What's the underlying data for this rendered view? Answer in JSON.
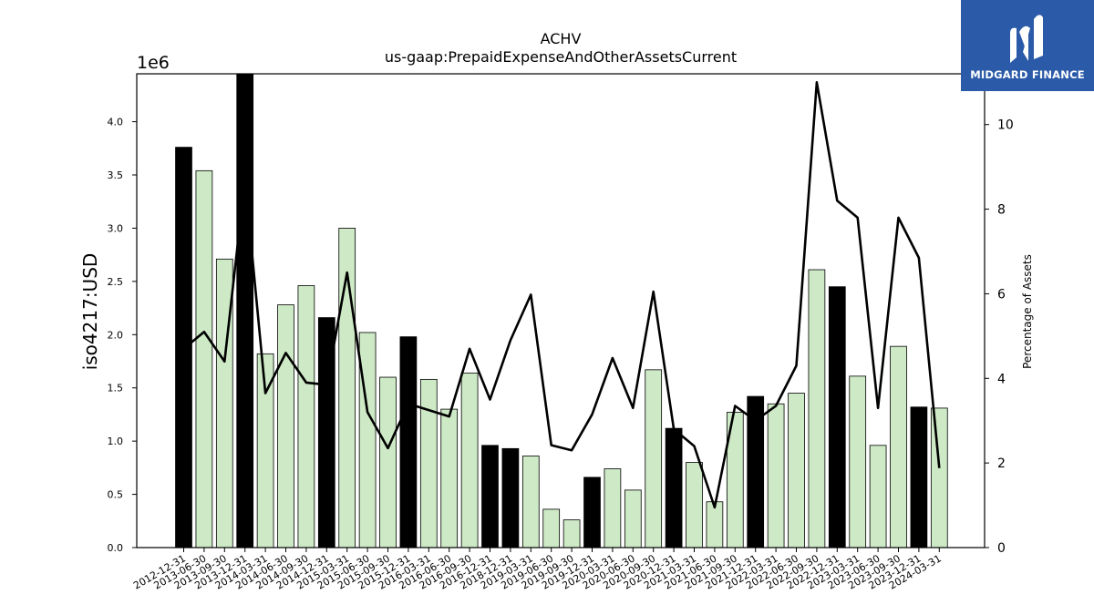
{
  "brand": {
    "name": "MIDGARD FINANCE",
    "logo_icon": "midgard-m-logo-icon",
    "logo_color": "#2a5aa8"
  },
  "chart_data": {
    "type": "bar",
    "title": "ACHV",
    "subtitle": "us-gaap:PrepaidExpenseAndOtherAssetsCurrent",
    "ylabel": "iso4217:USD",
    "ylabel_right": "Percentage of Assets",
    "y_offset_label": "1e6",
    "ylim": [
      0,
      4450000
    ],
    "ylim_right": [
      0,
      11.2
    ],
    "yticks": [
      "0.0",
      "0.5",
      "1.0",
      "1.5",
      "2.0",
      "2.5",
      "3.0",
      "3.5",
      "4.0"
    ],
    "yticks_right": [
      "0",
      "2",
      "4",
      "6",
      "8",
      "10"
    ],
    "colors": {
      "annual_bar": "#000000",
      "quarter_bar": "#cde9c5",
      "line": "#000000"
    },
    "categories": [
      "2012-12-31",
      "2013-06-30",
      "2013-09-30",
      "2013-12-31",
      "2014-03-31",
      "2014-06-30",
      "2014-09-30",
      "2014-12-31",
      "2015-03-31",
      "2015-06-30",
      "2015-09-30",
      "2015-12-31",
      "2016-03-31",
      "2016-06-30",
      "2016-09-30",
      "2016-12-31",
      "2018-12-31",
      "2019-03-31",
      "2019-06-30",
      "2019-09-30",
      "2019-12-31",
      "2020-03-31",
      "2020-06-30",
      "2020-09-30",
      "2020-12-31",
      "2021-03-31",
      "2021-06-30",
      "2021-09-30",
      "2021-12-31",
      "2022-03-31",
      "2022-06-30",
      "2022-09-30",
      "2022-12-31",
      "2023-03-31",
      "2023-06-30",
      "2023-09-30",
      "2023-12-31",
      "2024-03-31"
    ],
    "series": [
      {
        "type": "bar",
        "values": [
          3760000,
          3540000,
          2710000,
          4450000,
          1820000,
          2280000,
          2460000,
          2160000,
          3000000,
          2020000,
          1600000,
          1980000,
          1580000,
          1300000,
          1640000,
          960000,
          930000,
          860000,
          360000,
          260000,
          660000,
          740000,
          540000,
          1670000,
          1120000,
          800000,
          430000,
          1270000,
          1420000,
          1350000,
          1450000,
          2610000,
          2450000,
          1610000,
          960000,
          1890000,
          1320000,
          1310000
        ],
        "annual": [
          true,
          false,
          false,
          true,
          false,
          false,
          false,
          true,
          false,
          false,
          false,
          true,
          false,
          false,
          false,
          true,
          true,
          false,
          false,
          false,
          true,
          false,
          false,
          false,
          true,
          false,
          false,
          false,
          true,
          false,
          false,
          false,
          true,
          false,
          false,
          false,
          true,
          false
        ]
      },
      {
        "type": "line",
        "axis": "right",
        "values": [
          4.7,
          5.1,
          4.4,
          8.7,
          3.65,
          4.6,
          3.9,
          3.85,
          6.5,
          3.2,
          2.35,
          3.4,
          3.25,
          3.1,
          4.7,
          3.5,
          4.9,
          5.98,
          2.42,
          2.3,
          3.15,
          4.48,
          3.3,
          6.05,
          2.8,
          2.4,
          0.95,
          3.35,
          3.0,
          3.35,
          4.3,
          11.0,
          8.2,
          7.8,
          3.3,
          7.8,
          6.85,
          1.88
        ]
      }
    ],
    "grid": false
  }
}
